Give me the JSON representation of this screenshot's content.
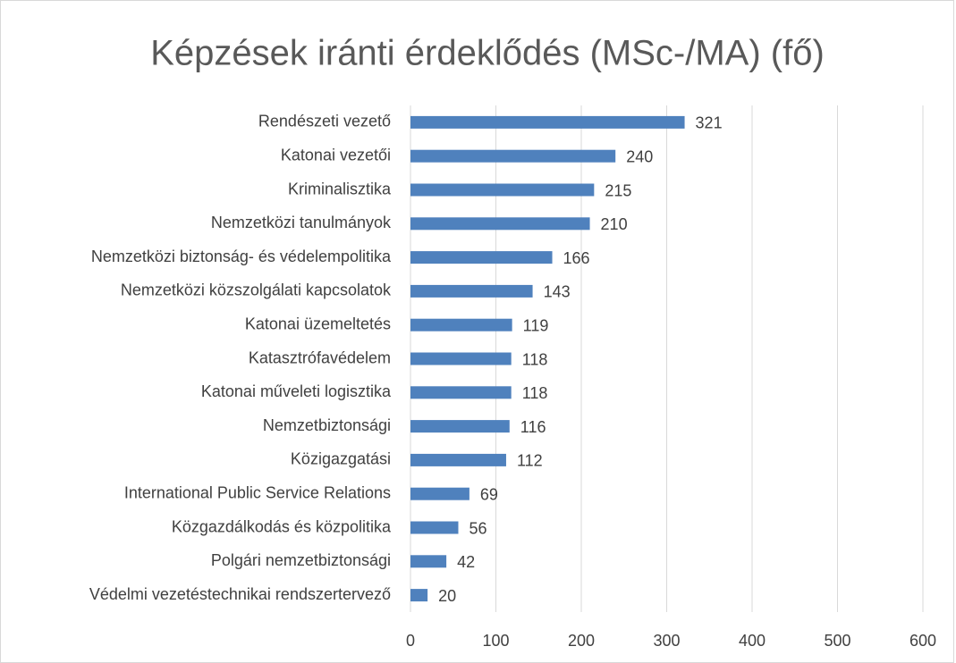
{
  "chart_data": {
    "type": "bar",
    "orientation": "horizontal",
    "title": "Képzések iránti érdeklődés  (MSc-/MA) (fő)",
    "categories": [
      "Rendészeti vezető",
      "Katonai vezetői",
      "Kriminalisztika",
      "Nemzetközi tanulmányok",
      "Nemzetközi biztonság- és védelempolitika",
      "Nemzetközi közszolgálati kapcsolatok",
      "Katonai üzemeltetés",
      "Katasztrófavédelem",
      "Katonai műveleti logisztika",
      "Nemzetbiztonsági",
      "Közigazgatási",
      "International Public Service Relations",
      "Közgazdálkodás és közpolitika",
      "Polgári nemzetbiztonsági",
      "Védelmi vezetéstechnikai rendszertervező"
    ],
    "values": [
      321,
      240,
      215,
      210,
      166,
      143,
      119,
      118,
      118,
      116,
      112,
      69,
      56,
      42,
      20
    ],
    "color": "#4f81bd",
    "xlim": [
      0,
      600
    ],
    "xticks": [
      0,
      100,
      200,
      300,
      400,
      500,
      600
    ],
    "grid": true
  }
}
